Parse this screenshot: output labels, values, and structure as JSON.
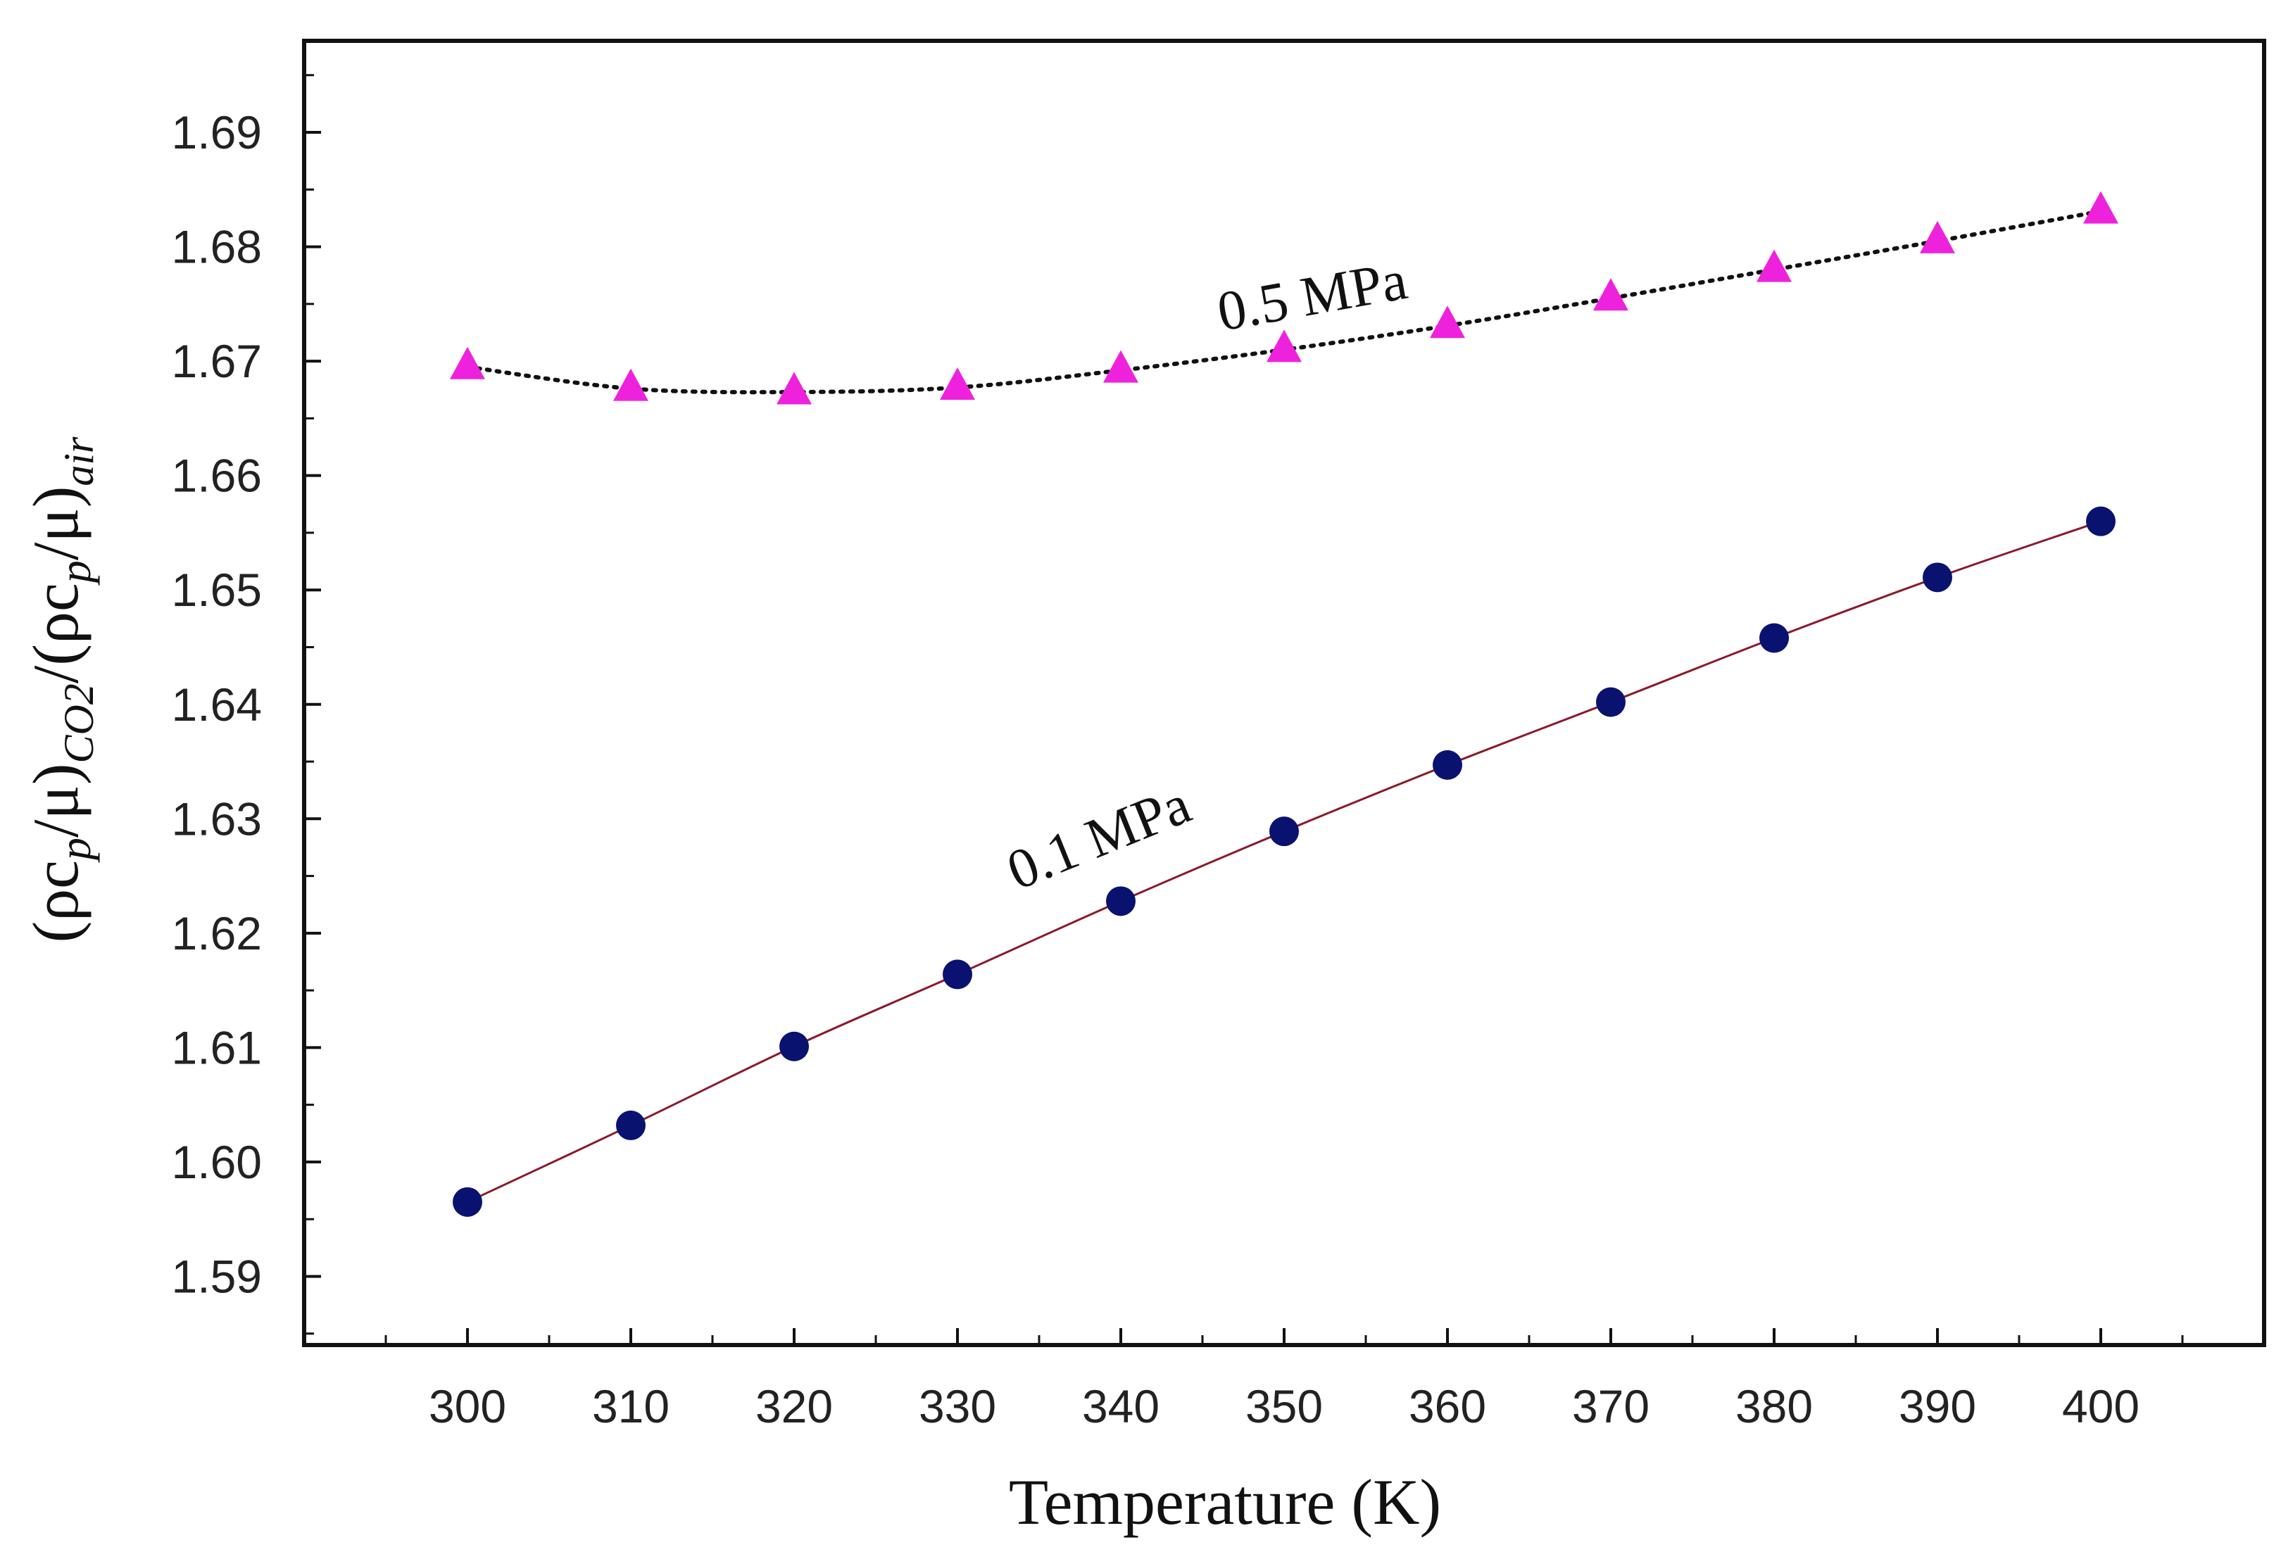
{
  "chart_data": {
    "type": "line",
    "xlabel": "Temperature  (K)",
    "ylabel": {
      "base": "(ρc",
      "sub_p": "p",
      "mid": "/μ)",
      "sub_co2": "CO2",
      "slash": "/(ρc",
      "sub_p2": "p",
      "mid2": "/μ)",
      "sub_air": "air"
    },
    "x": [
      300,
      310,
      320,
      330,
      340,
      350,
      360,
      370,
      380,
      390,
      400
    ],
    "x_ticks": [
      "300",
      "310",
      "320",
      "330",
      "340",
      "350",
      "360",
      "370",
      "380",
      "390",
      "400"
    ],
    "y_ticks": [
      "1.59",
      "1.60",
      "1.61",
      "1.62",
      "1.63",
      "1.64",
      "1.65",
      "1.66",
      "1.67",
      "1.68",
      "1.69"
    ],
    "xlim": [
      290,
      410
    ],
    "ylim": [
      1.584,
      1.698
    ],
    "series": [
      {
        "name": "0.5 MPa",
        "marker": "triangle",
        "line": "dotted",
        "marker_color": "#ee22dd",
        "line_color": "#111111",
        "values": [
          1.6695,
          1.6676,
          1.6673,
          1.6677,
          1.6692,
          1.671,
          1.6731,
          1.6755,
          1.678,
          1.6805,
          1.6831
        ]
      },
      {
        "name": "0.1 MPa",
        "marker": "circle",
        "line": "solid",
        "marker_color": "#0a1270",
        "line_color": "#8a1a2a",
        "values": [
          1.5965,
          1.6032,
          1.6101,
          1.6164,
          1.6228,
          1.6289,
          1.6347,
          1.6402,
          1.6458,
          1.6511,
          1.656
        ]
      }
    ],
    "annotations": [
      "0.5 MPa",
      "0.1 MPa"
    ]
  }
}
